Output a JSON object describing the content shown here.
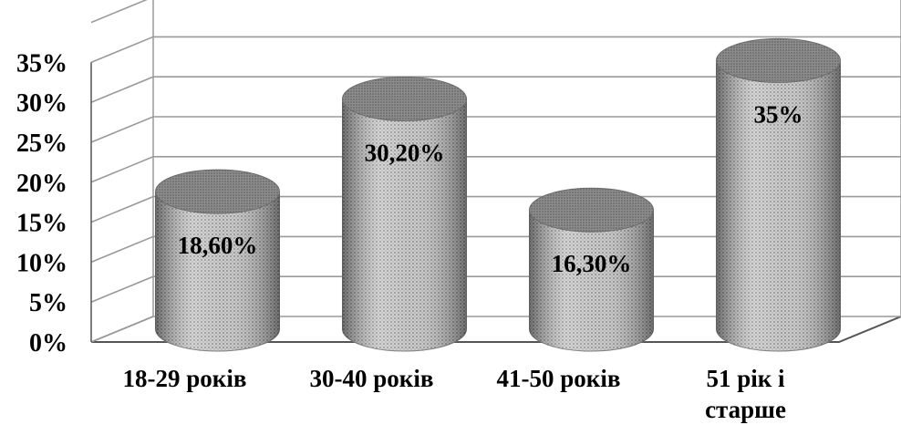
{
  "chart_data": {
    "type": "bar",
    "style": "3d-cylinder",
    "categories": [
      "18-29 років",
      "30-40 років",
      "41-50 років",
      "51 рік і старше"
    ],
    "category_lines": [
      [
        "18-29 років"
      ],
      [
        "30-40 років"
      ],
      [
        "41-50 років"
      ],
      [
        "51 рік і",
        "старше"
      ]
    ],
    "values": [
      18.6,
      30.2,
      16.3,
      35
    ],
    "data_labels": [
      "18,60%",
      "30,20%",
      "16,30%",
      "35%"
    ],
    "y_ticks": [
      0,
      5,
      10,
      15,
      20,
      25,
      30,
      35
    ],
    "y_tick_labels": [
      "0%",
      "5%",
      "10%",
      "15%",
      "20%",
      "25%",
      "30%",
      "35%"
    ],
    "ylim": [
      0,
      40
    ],
    "grid": true,
    "legend": "none",
    "title": "",
    "xlabel": "",
    "ylabel": "",
    "colors": {
      "bar_body": "#b8b8b8",
      "bar_top": "#8a8a8a",
      "grid": "#9a9a9a",
      "axis": "#555555"
    }
  }
}
